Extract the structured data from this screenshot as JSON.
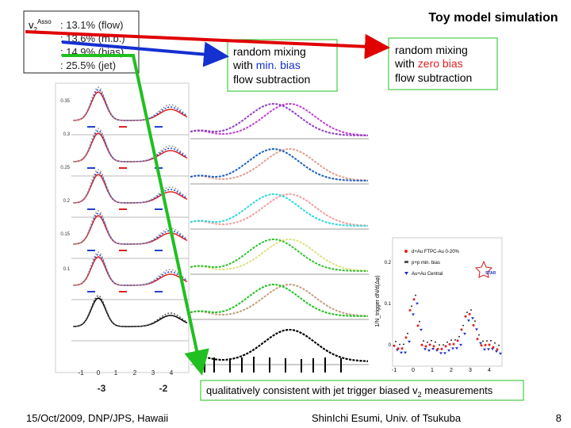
{
  "title": "Toy model simulation",
  "legend": {
    "label": "v",
    "label_sub": "2",
    "label_sup": "Asso",
    "items": [
      ": 13.1% (flow)",
      ": 13.6% (m.b.)",
      ": 14.9% (bias)",
      ": 25.5% (jet)"
    ]
  },
  "boxes": [
    {
      "line1": "random mixing",
      "line2_pre": "with ",
      "line2_highlight": "min. bias",
      "line3": "flow subtraction"
    },
    {
      "line1": "random mixing",
      "line2_pre": "with ",
      "line2_highlight": "zero bias",
      "line3": "flow subtraction"
    }
  ],
  "conclusion": {
    "pre": "qualitatively consistent with jet trigger biased v",
    "sub": "2",
    "post": " measurements"
  },
  "left_plot": {
    "y_ticks": [
      "0.35",
      "0.3",
      "0.25",
      "0.2",
      "0.15",
      "0.1"
    ],
    "x_ticks": [
      "-1",
      "0",
      "1",
      "2",
      "3",
      "4"
    ],
    "x_labels": [
      "-3",
      "-2"
    ]
  },
  "right_plot": {
    "y_label": "1/N_trigger dN/d(Δφ)",
    "y_ticks": [
      "0.2",
      "0.1",
      "0"
    ],
    "x_ticks": [
      "-1",
      "0",
      "1",
      "2",
      "3",
      "4"
    ],
    "legend": [
      "d+Au FTPC-Au 0-20%",
      "p+p min. bias",
      "Au+Au Central"
    ],
    "badge": "STAR"
  },
  "footer": {
    "left": "15/Oct/2009, DNP/JPS, Hawaii",
    "center": "ShinIchi Esumi, Univ. of Tsukuba",
    "page": "8"
  }
}
